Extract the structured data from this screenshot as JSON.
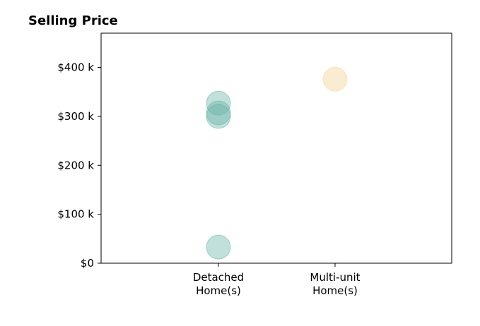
{
  "chart_data": {
    "type": "scatter",
    "title": "Selling Price",
    "xlabel": "",
    "ylabel": "",
    "categories": [
      [
        "Detached",
        "Home(s)"
      ],
      [
        "Multi-unit",
        "Home(s)"
      ]
    ],
    "ylim": [
      0,
      470000
    ],
    "y_ticks": [
      {
        "value": 0,
        "label": "$0"
      },
      {
        "value": 100000,
        "label": "$100 k"
      },
      {
        "value": 200000,
        "label": "$200 k"
      },
      {
        "value": 300000,
        "label": "$300 k"
      },
      {
        "value": 400000,
        "label": "$400 k"
      }
    ],
    "grid": false,
    "series": [
      {
        "category_index": 0,
        "color": "#66b2a6",
        "opacity": 0.4,
        "values": [
          327000,
          307000,
          300000,
          33000
        ]
      },
      {
        "category_index": 1,
        "color": "#f5dfb0",
        "opacity": 0.6,
        "values": [
          376000
        ]
      }
    ]
  }
}
